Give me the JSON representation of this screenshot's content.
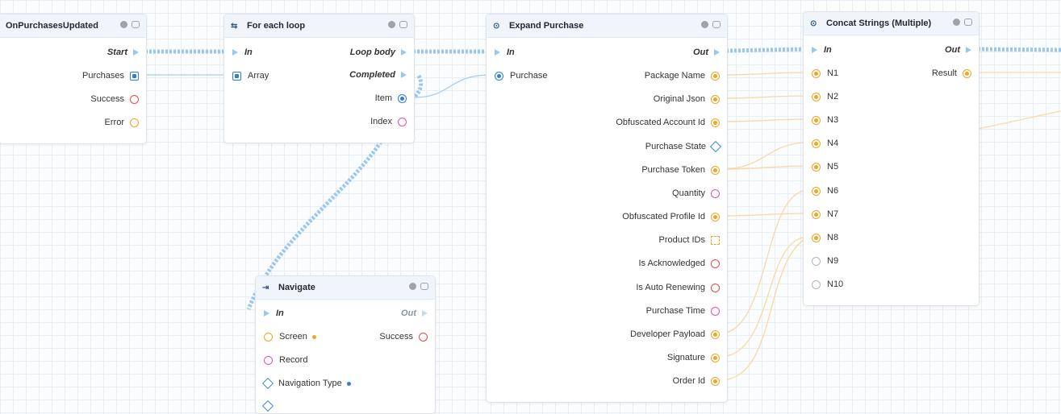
{
  "colors": {
    "exec": "#9ac7ef",
    "string": "#f2a51e",
    "struct": "#2e7fd6",
    "error": "#e84747",
    "object": "#e44fb5"
  },
  "nodes": {
    "on_purchases_updated": {
      "title": "OnPurchasesUpdated",
      "outputs": {
        "start": "Start",
        "purchases": "Purchases",
        "success": "Success",
        "error": "Error"
      }
    },
    "for_each_loop": {
      "title": "For each loop",
      "icon": "loop-icon",
      "inputs": {
        "in": "In",
        "array": "Array"
      },
      "outputs": {
        "loop_body": "Loop body",
        "completed": "Completed",
        "item": "Item",
        "index": "Index"
      }
    },
    "expand_purchase": {
      "title": "Expand Purchase",
      "icon": "expand-icon",
      "inputs": {
        "in": "In",
        "purchase": "Purchase"
      },
      "outputs": {
        "out": "Out",
        "package_name": "Package Name",
        "original_json": "Original Json",
        "obfuscated_account_id": "Obfuscated Account Id",
        "purchase_state": "Purchase State",
        "purchase_token": "Purchase Token",
        "quantity": "Quantity",
        "obfuscated_profile_id": "Obfuscated Profile Id",
        "product_ids": "Product IDs",
        "is_acknowledged": "Is Acknowledged",
        "is_auto_renewing": "Is Auto Renewing",
        "purchase_time": "Purchase Time",
        "developer_payload": "Developer Payload",
        "signature": "Signature",
        "order_id": "Order Id"
      }
    },
    "concat_strings": {
      "title": "Concat Strings (Multiple)",
      "icon": "function-icon",
      "inputs": {
        "in": "In",
        "n1": "N1",
        "n2": "N2",
        "n3": "N3",
        "n4": "N4",
        "n5": "N5",
        "n6": "N6",
        "n7": "N7",
        "n8": "N8",
        "n9": "N9",
        "n10": "N10"
      },
      "outputs": {
        "out": "Out",
        "result": "Result"
      }
    },
    "navigate": {
      "title": "Navigate",
      "icon": "navigate-icon",
      "inputs": {
        "in": "In",
        "screen": "Screen",
        "record": "Record",
        "navigation_type": "Navigation Type"
      },
      "outputs": {
        "out": "Out",
        "success": "Success"
      }
    }
  }
}
